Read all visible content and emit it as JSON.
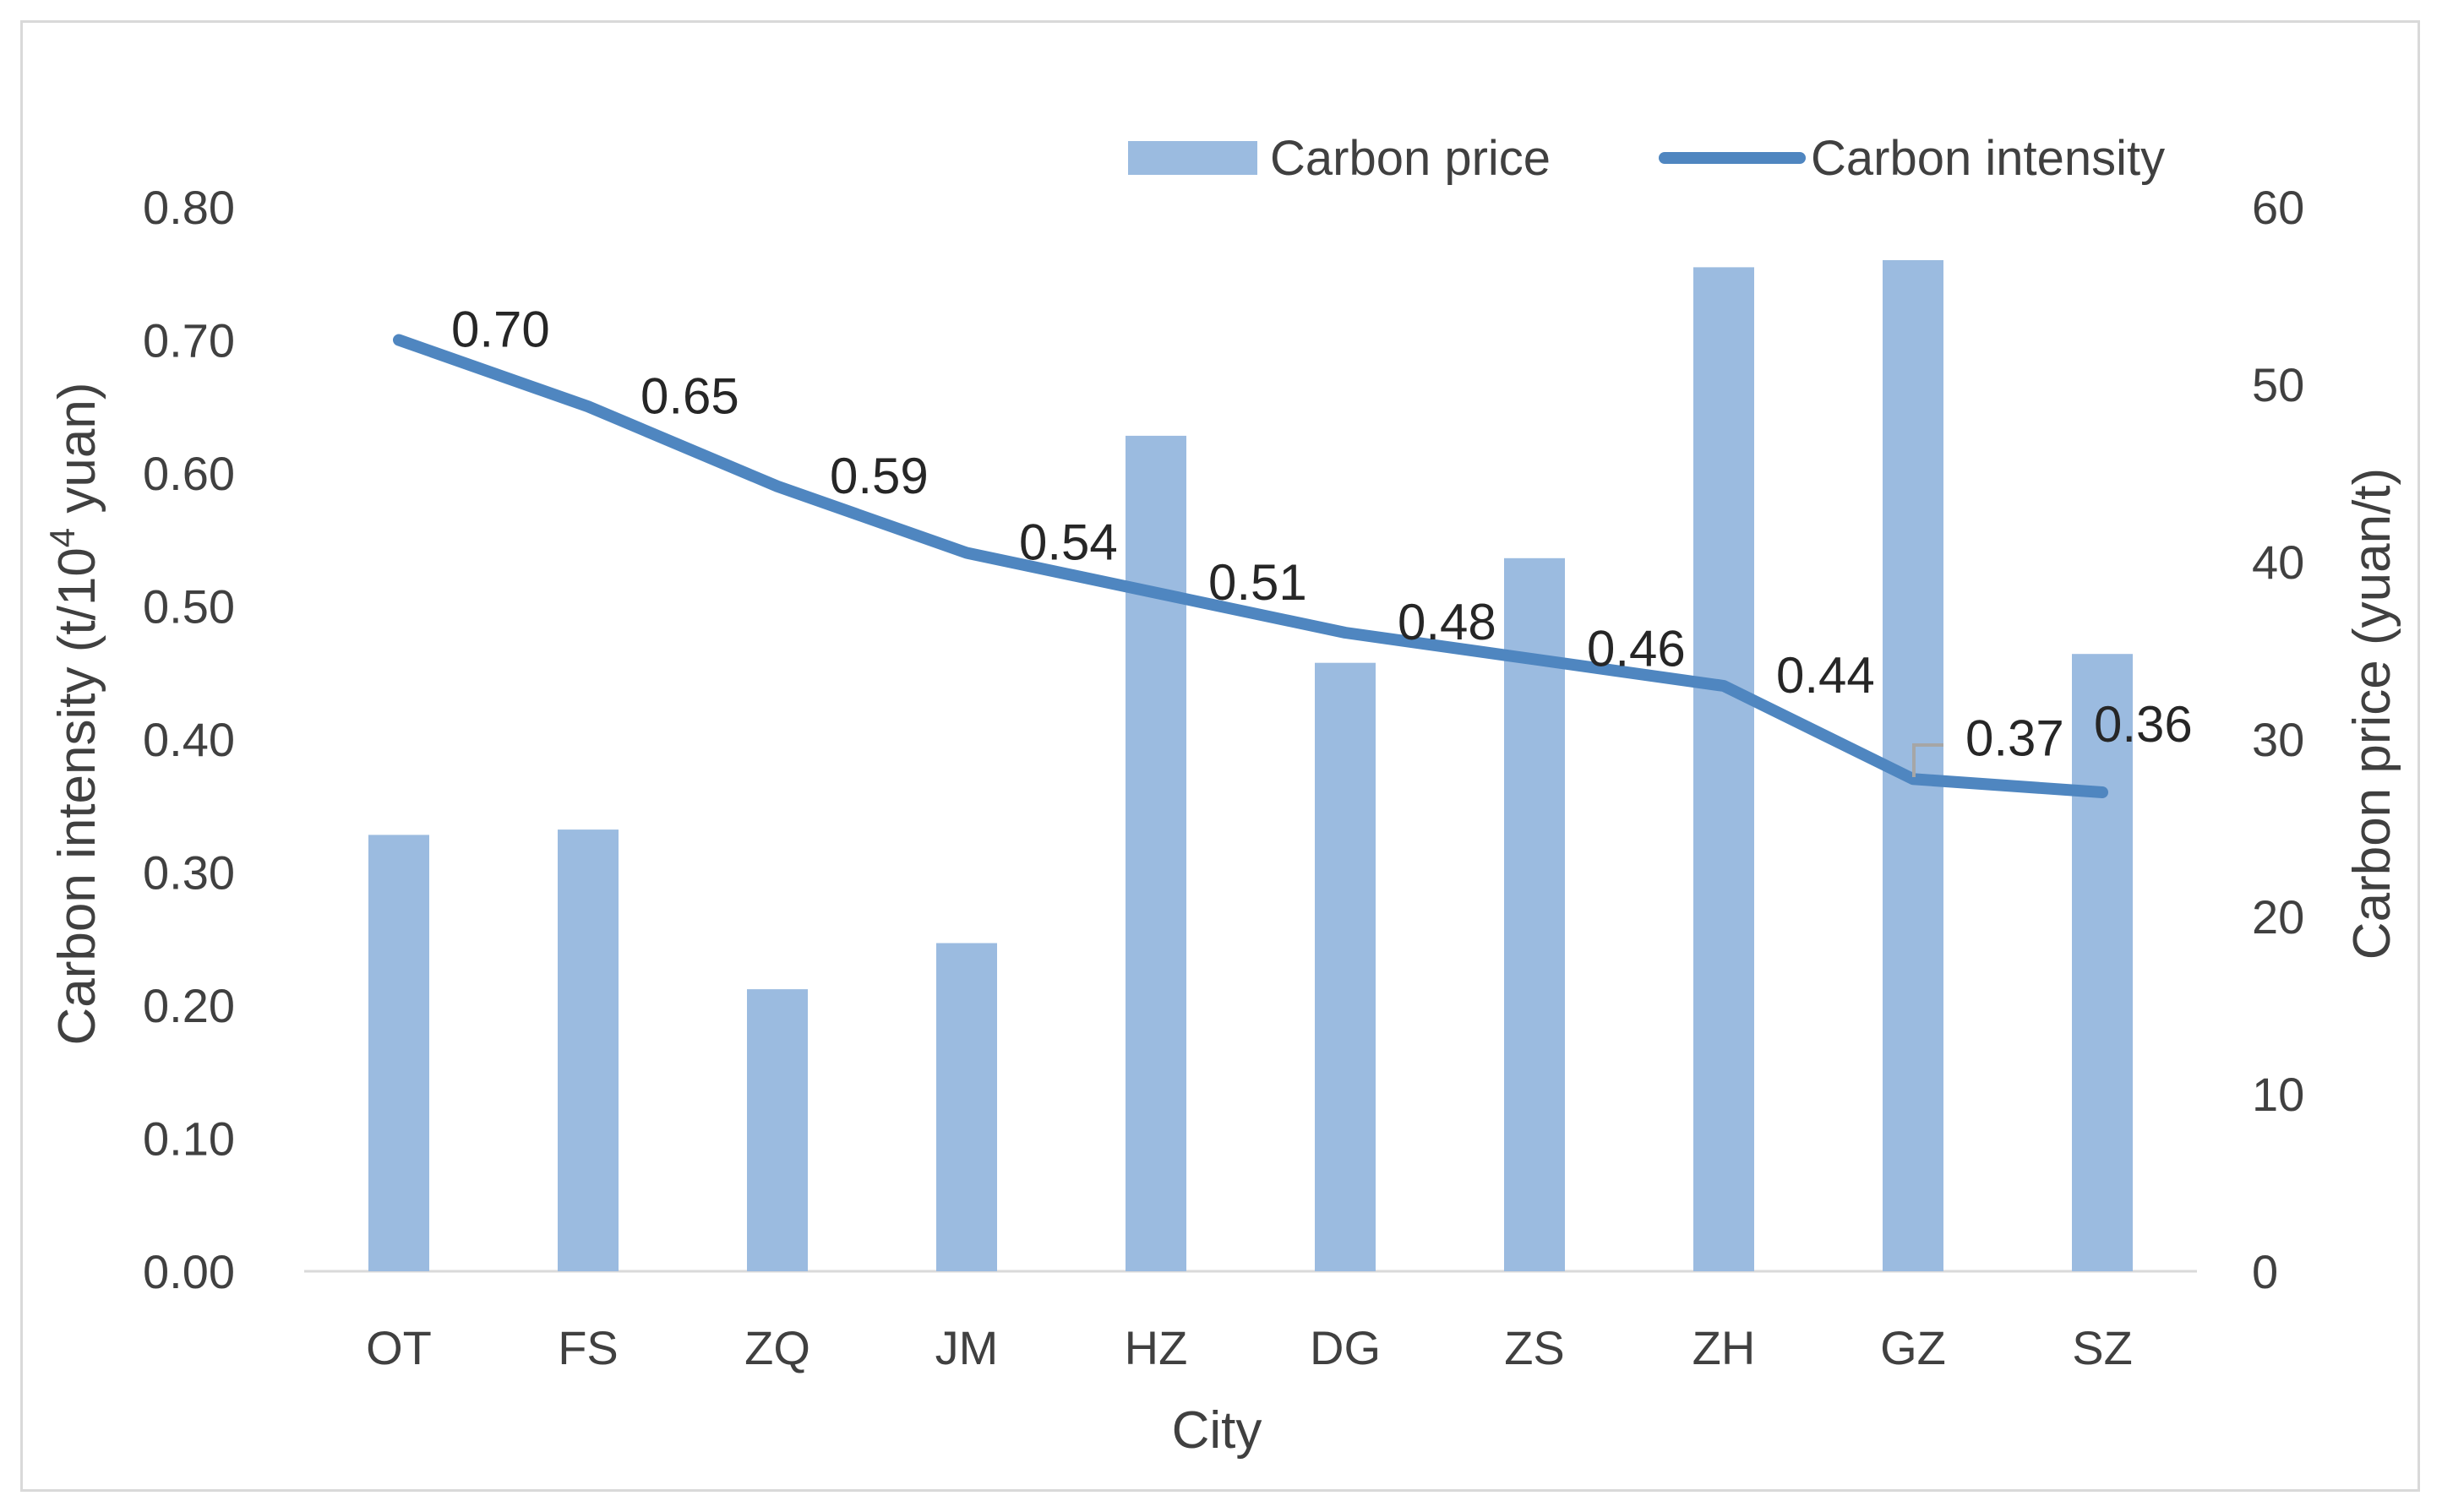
{
  "chart_data": {
    "type": "bar+line",
    "categories": [
      "OT",
      "FS",
      "ZQ",
      "JM",
      "HZ",
      "DG",
      "ZS",
      "ZH",
      "GZ",
      "SZ"
    ],
    "series": [
      {
        "name": "Carbon price",
        "type": "bar",
        "axis": "right",
        "color": "#9bbbe0",
        "values": [
          24.6,
          24.9,
          15.9,
          18.5,
          47.1,
          34.3,
          40.2,
          56.6,
          57.0,
          34.8
        ]
      },
      {
        "name": "Carbon intensity",
        "type": "line",
        "axis": "left",
        "color": "#4f86c0",
        "values": [
          0.7,
          0.65,
          0.59,
          0.54,
          0.51,
          0.48,
          0.46,
          0.44,
          0.37,
          0.36
        ],
        "labels": [
          "0.70",
          "0.65",
          "0.59",
          "0.54",
          "0.51",
          "0.48",
          "0.46",
          "0.44",
          "0.37",
          "0.36"
        ]
      }
    ],
    "left_axis": {
      "title_main": "Carbon intensity (t/10",
      "title_sup": "4",
      "title_end": " yuan)",
      "ylim": [
        0,
        0.8
      ],
      "ticks": [
        "0.00",
        "0.10",
        "0.20",
        "0.30",
        "0.40",
        "0.50",
        "0.60",
        "0.70",
        "0.80"
      ]
    },
    "right_axis": {
      "title": "Carbon price (yuan/t)",
      "ylim": [
        0,
        60
      ],
      "ticks": [
        "0",
        "10",
        "20",
        "30",
        "40",
        "50",
        "60"
      ]
    },
    "xlabel": "City",
    "legend": {
      "position": "top-right",
      "entries": [
        "Carbon price",
        "Carbon intensity"
      ]
    },
    "grid": false
  }
}
